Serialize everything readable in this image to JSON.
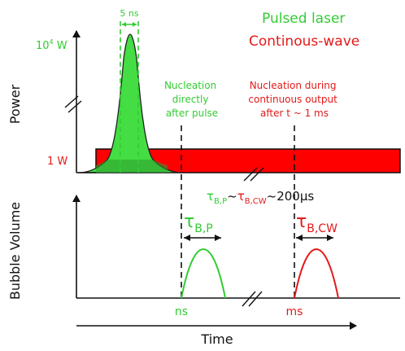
{
  "labels": {
    "pulse_width": "5 ns",
    "legend_pulsed": "Pulsed laser",
    "legend_cw": "Continous-wave",
    "power_axis": "Power",
    "power_high": "10",
    "power_high_exp": "4",
    "power_high_unit": " W",
    "power_low": "1 W",
    "nucleation_pulse": [
      "Nucleation",
      "directly",
      "after pulse"
    ],
    "nucleation_cw": [
      "Nucleation during",
      "continuous output",
      "after t ~ 1 ms"
    ],
    "relation": {
      "tau": "τ",
      "sub_bp": "B,P",
      "tilde1": "~",
      "sub_bcw": "B,CW",
      "tail": "~200μs"
    },
    "tau_bp": {
      "tau": "τ",
      "sub": "B,P"
    },
    "tau_bcw": {
      "tau": "τ",
      "sub": "B,CW"
    },
    "bubble_axis": "Bubble Volume",
    "tick_ns": "ns",
    "tick_ms": "ms",
    "time_axis": "Time"
  },
  "colors": {
    "pulsed": "#33cc33",
    "cw": "#e41a1a",
    "axis": "#111111"
  }
}
